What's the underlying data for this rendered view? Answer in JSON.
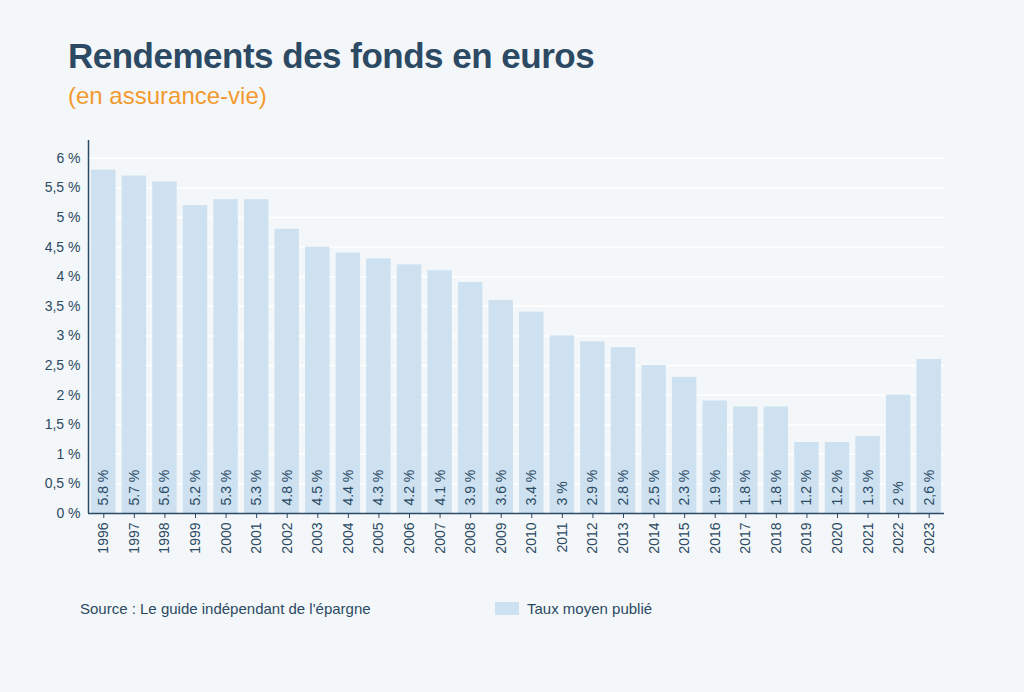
{
  "chart_data": {
    "type": "bar",
    "title": "Rendements des fonds en euros",
    "subtitle": "(en assurance-vie)",
    "source": "Source : Le guide indépendant de l'épargne",
    "categories": [
      "1996",
      "1997",
      "1998",
      "1999",
      "2000",
      "2001",
      "2002",
      "2003",
      "2004",
      "2005",
      "2006",
      "2007",
      "2008",
      "2009",
      "2010",
      "2011",
      "2012",
      "2013",
      "2014",
      "2015",
      "2016",
      "2017",
      "2018",
      "2019",
      "2020",
      "2021",
      "2022",
      "2023"
    ],
    "series": [
      {
        "name": "Taux moyen publié",
        "color": "#cde1f0",
        "values": [
          5.8,
          5.7,
          5.6,
          5.2,
          5.3,
          5.3,
          4.8,
          4.5,
          4.4,
          4.3,
          4.2,
          4.1,
          3.9,
          3.6,
          3.4,
          3,
          2.9,
          2.8,
          2.5,
          2.3,
          1.9,
          1.8,
          1.8,
          1.2,
          1.2,
          1.3,
          2,
          2.6
        ],
        "value_labels": [
          "5.8 %",
          "5.7 %",
          "5.6 %",
          "5.2 %",
          "5.3 %",
          "5.3 %",
          "4.8 %",
          "4.5 %",
          "4.4 %",
          "4.3 %",
          "4.2 %",
          "4.1 %",
          "3.9 %",
          "3.6 %",
          "3.4 %",
          "3 %",
          "2.9 %",
          "2.8 %",
          "2.5 %",
          "2.3 %",
          "1.9 %",
          "1.8 %",
          "1.8 %",
          "1.2 %",
          "1.2 %",
          "1.3 %",
          "2 %",
          "2,6 %"
        ]
      }
    ],
    "ylim": [
      0,
      6.3
    ],
    "yticks": [
      {
        "value": 0,
        "label": "0 %"
      },
      {
        "value": 0.5,
        "label": "0,5 %"
      },
      {
        "value": 1,
        "label": "1 %"
      },
      {
        "value": 1.5,
        "label": "1,5 %"
      },
      {
        "value": 2,
        "label": "2 %"
      },
      {
        "value": 2.5,
        "label": "2,5 %"
      },
      {
        "value": 3,
        "label": "3 %"
      },
      {
        "value": 3.5,
        "label": "3,5 %"
      },
      {
        "value": 4,
        "label": "4 %"
      },
      {
        "value": 4.5,
        "label": "4,5 %"
      },
      {
        "value": 5,
        "label": "5 %"
      },
      {
        "value": 5.5,
        "label": "5,5 %"
      },
      {
        "value": 6,
        "label": "6 %"
      }
    ],
    "grid": true,
    "data_labels": true,
    "legend": "bottom"
  }
}
